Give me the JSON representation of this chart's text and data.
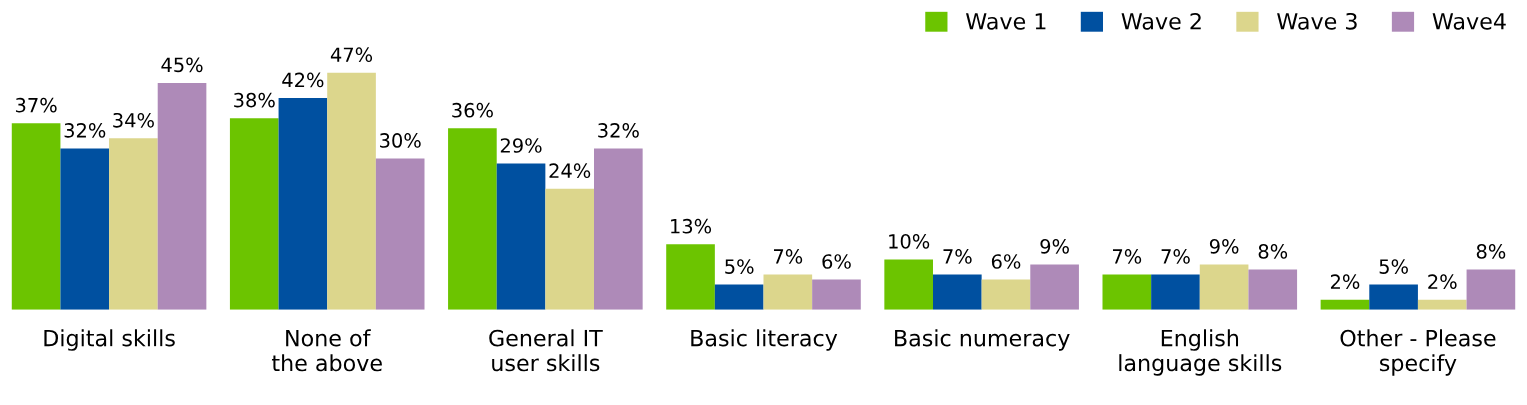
{
  "chart_data": {
    "type": "bar",
    "categories": [
      "Digital skills",
      "None of\nthe above",
      "General IT\nuser skills",
      "Basic literacy",
      "Basic numeracy",
      "English\nlanguage skills",
      "Other - Please\nspecify"
    ],
    "series": [
      {
        "name": "Wave 1",
        "color": "#6cc400",
        "values": [
          37,
          38,
          36,
          13,
          10,
          7,
          2
        ],
        "value_labels": [
          "37%",
          "38%",
          "36%",
          "13%",
          "10%",
          "7%",
          "2%"
        ]
      },
      {
        "name": "Wave 2",
        "color": "#0050a0",
        "values": [
          32,
          42,
          29,
          5,
          7,
          7,
          5
        ],
        "value_labels": [
          "32%",
          "42%",
          "29%",
          "5%",
          "7%",
          "7%",
          "5%"
        ]
      },
      {
        "name": "Wave 3",
        "color": "#dcd68c",
        "values": [
          34,
          47,
          24,
          7,
          6,
          9,
          2
        ],
        "value_labels": [
          "34%",
          "47%",
          "24%",
          "7%",
          "6%",
          "9%",
          "2%"
        ]
      },
      {
        "name": "Wave4",
        "color": "#ae8ab8",
        "values": [
          45,
          30,
          32,
          6,
          9,
          8,
          8
        ],
        "value_labels": [
          "45%",
          "30%",
          "32%",
          "6%",
          "9%",
          "8%",
          "8%"
        ]
      }
    ],
    "legend": "top right",
    "grid": false
  }
}
